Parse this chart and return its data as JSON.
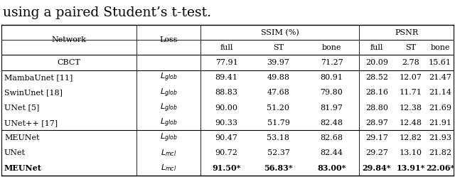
{
  "caption_text": "using a paired Student’s t-test.",
  "caption_fontsize": 13.5,
  "rows": [
    {
      "network": "CBCT",
      "loss": "",
      "vals": [
        "77.91",
        "39.97",
        "71.27",
        "20.09",
        "2.78",
        "15.61"
      ],
      "bold": false,
      "cbct": true
    },
    {
      "network": "MambaUnet [11]",
      "loss": "L_glob",
      "vals": [
        "89.41",
        "49.88",
        "80.91",
        "28.52",
        "12.07",
        "21.47"
      ],
      "bold": false,
      "cbct": false
    },
    {
      "network": "SwinUnet [18]",
      "loss": "L_glob",
      "vals": [
        "88.83",
        "47.68",
        "79.80",
        "28.16",
        "11.71",
        "21.14"
      ],
      "bold": false,
      "cbct": false
    },
    {
      "network": "UNet [5]",
      "loss": "L_glob",
      "vals": [
        "90.00",
        "51.20",
        "81.97",
        "28.80",
        "12.38",
        "21.69"
      ],
      "bold": false,
      "cbct": false
    },
    {
      "network": "UNet++ [17]",
      "loss": "L_glob",
      "vals": [
        "90.33",
        "51.79",
        "82.48",
        "28.97",
        "12.48",
        "21.91"
      ],
      "bold": false,
      "cbct": false
    },
    {
      "network": "MEUNet",
      "loss": "L_glob",
      "vals": [
        "90.47",
        "53.18",
        "82.68",
        "29.17",
        "12.82",
        "21.93"
      ],
      "bold": false,
      "cbct": false
    },
    {
      "network": "UNet",
      "loss": "L_mcl",
      "vals": [
        "90.72",
        "52.37",
        "82.44",
        "29.27",
        "13.10",
        "21.82"
      ],
      "bold": false,
      "cbct": false
    },
    {
      "network": "MEUNet",
      "loss": "L_mcl",
      "vals": [
        "91.50*",
        "56.83*",
        "83.00*",
        "29.84*",
        "13.91*",
        "22.06*"
      ],
      "bold": true,
      "cbct": false
    }
  ],
  "figsize": [
    6.4,
    2.49
  ],
  "dpi": 100,
  "font_size": 8.0,
  "header_font_size": 8.0,
  "line_color": "#000000"
}
